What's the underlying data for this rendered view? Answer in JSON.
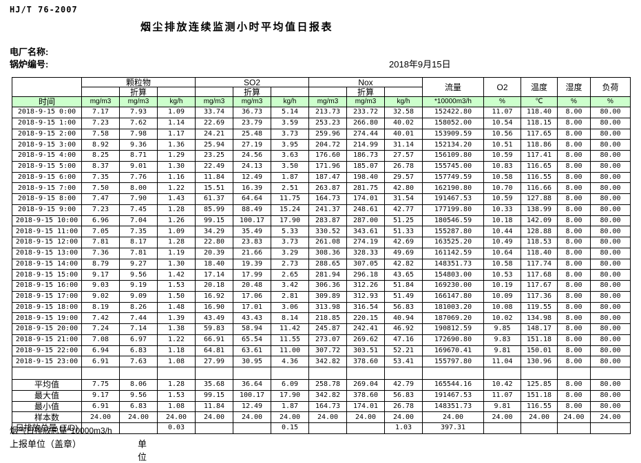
{
  "header": {
    "standard": "HJ/T  76-2007",
    "title": "烟尘排放连续监测小时平均值日报表",
    "plant_label": "电厂名称:",
    "boiler_label": "锅炉编号:",
    "date": "2018年9月15日"
  },
  "table": {
    "time_header": "时间",
    "conv_label": "折算",
    "groups": {
      "pm": "颗粒物",
      "so2": "SO2",
      "nox": "Nox",
      "flow": "流量",
      "o2": "O2",
      "temp": "温度",
      "humidity": "湿度",
      "load": "负荷"
    },
    "units": [
      "mg/m3",
      "mg/m3",
      "kg/h",
      "mg/m3",
      "mg/m3",
      "kg/h",
      "mg/m3",
      "mg/m3",
      "kg/h",
      "*10000m3/h",
      "%",
      "℃",
      "%",
      "%"
    ],
    "colors": {
      "header_green": "#ccffcc",
      "border": "#000000"
    },
    "rows": [
      [
        "2018-9-15 0:00",
        "7.17",
        "7.93",
        "1.09",
        "33.74",
        "36.73",
        "5.14",
        "213.73",
        "233.72",
        "32.58",
        "152422.80",
        "11.07",
        "118.40",
        "8.00",
        "80.00"
      ],
      [
        "2018-9-15 1:00",
        "7.23",
        "7.62",
        "1.14",
        "22.69",
        "23.79",
        "3.59",
        "253.23",
        "266.80",
        "40.02",
        "158052.00",
        "10.54",
        "118.15",
        "8.00",
        "80.00"
      ],
      [
        "2018-9-15 2:00",
        "7.58",
        "7.98",
        "1.17",
        "24.21",
        "25.48",
        "3.73",
        "259.96",
        "274.44",
        "40.01",
        "153909.59",
        "10.56",
        "117.65",
        "8.00",
        "80.00"
      ],
      [
        "2018-9-15 3:00",
        "8.92",
        "9.36",
        "1.36",
        "25.94",
        "27.19",
        "3.95",
        "204.72",
        "214.99",
        "31.14",
        "152134.20",
        "10.51",
        "118.86",
        "8.00",
        "80.00"
      ],
      [
        "2018-9-15 4:00",
        "8.25",
        "8.71",
        "1.29",
        "23.25",
        "24.56",
        "3.63",
        "176.60",
        "186.73",
        "27.57",
        "156109.80",
        "10.59",
        "117.41",
        "8.00",
        "80.00"
      ],
      [
        "2018-9-15 5:00",
        "8.37",
        "9.01",
        "1.30",
        "22.49",
        "24.13",
        "3.50",
        "171.96",
        "185.07",
        "26.78",
        "155745.00",
        "10.83",
        "116.65",
        "8.00",
        "80.00"
      ],
      [
        "2018-9-15 6:00",
        "7.35",
        "7.76",
        "1.16",
        "11.84",
        "12.49",
        "1.87",
        "187.47",
        "198.40",
        "29.57",
        "157749.59",
        "10.58",
        "116.55",
        "8.00",
        "80.00"
      ],
      [
        "2018-9-15 7:00",
        "7.50",
        "8.00",
        "1.22",
        "15.51",
        "16.39",
        "2.51",
        "263.87",
        "281.75",
        "42.80",
        "162190.80",
        "10.70",
        "116.66",
        "8.00",
        "80.00"
      ],
      [
        "2018-9-15 8:00",
        "7.47",
        "7.90",
        "1.43",
        "61.37",
        "64.64",
        "11.75",
        "164.73",
        "174.01",
        "31.54",
        "191467.53",
        "10.59",
        "127.88",
        "8.00",
        "80.00"
      ],
      [
        "2018-9-15 9:00",
        "7.23",
        "7.45",
        "1.28",
        "85.99",
        "88.49",
        "15.24",
        "241.37",
        "248.61",
        "42.77",
        "177199.80",
        "10.33",
        "138.99",
        "8.00",
        "80.00"
      ],
      [
        "2018-9-15 10:00",
        "6.96",
        "7.04",
        "1.26",
        "99.15",
        "100.17",
        "17.90",
        "283.87",
        "287.00",
        "51.25",
        "180546.59",
        "10.18",
        "142.09",
        "8.00",
        "80.00"
      ],
      [
        "2018-9-15 11:00",
        "7.05",
        "7.35",
        "1.09",
        "34.29",
        "35.49",
        "5.33",
        "330.52",
        "343.61",
        "51.33",
        "155287.80",
        "10.44",
        "128.88",
        "8.00",
        "80.00"
      ],
      [
        "2018-9-15 12:00",
        "7.81",
        "8.17",
        "1.28",
        "22.80",
        "23.83",
        "3.73",
        "261.08",
        "274.19",
        "42.69",
        "163525.20",
        "10.49",
        "118.53",
        "8.00",
        "80.00"
      ],
      [
        "2018-9-15 13:00",
        "7.36",
        "7.81",
        "1.19",
        "20.39",
        "21.66",
        "3.29",
        "308.36",
        "328.33",
        "49.69",
        "161142.59",
        "10.64",
        "118.40",
        "8.00",
        "80.00"
      ],
      [
        "2018-9-15 14:00",
        "8.79",
        "9.27",
        "1.30",
        "18.40",
        "19.39",
        "2.73",
        "288.65",
        "307.05",
        "42.82",
        "148351.73",
        "10.58",
        "117.74",
        "8.00",
        "80.00"
      ],
      [
        "2018-9-15 15:00",
        "9.17",
        "9.56",
        "1.42",
        "17.14",
        "17.99",
        "2.65",
        "281.94",
        "296.18",
        "43.65",
        "154803.00",
        "10.53",
        "117.68",
        "8.00",
        "80.00"
      ],
      [
        "2018-9-15 16:00",
        "9.03",
        "9.19",
        "1.53",
        "20.18",
        "20.48",
        "3.42",
        "306.36",
        "312.26",
        "51.84",
        "169230.00",
        "10.19",
        "117.67",
        "8.00",
        "80.00"
      ],
      [
        "2018-9-15 17:00",
        "9.02",
        "9.09",
        "1.50",
        "16.92",
        "17.06",
        "2.81",
        "309.89",
        "312.93",
        "51.49",
        "166147.80",
        "10.09",
        "117.36",
        "8.00",
        "80.00"
      ],
      [
        "2018-9-15 18:00",
        "8.19",
        "8.26",
        "1.48",
        "16.90",
        "17.01",
        "3.06",
        "313.98",
        "316.54",
        "56.83",
        "181003.20",
        "10.08",
        "119.55",
        "8.00",
        "80.00"
      ],
      [
        "2018-9-15 19:00",
        "7.42",
        "7.44",
        "1.39",
        "43.49",
        "43.43",
        "8.14",
        "218.85",
        "220.15",
        "40.94",
        "187069.20",
        "10.02",
        "134.98",
        "8.00",
        "80.00"
      ],
      [
        "2018-9-15 20:00",
        "7.24",
        "7.14",
        "1.38",
        "59.83",
        "58.94",
        "11.42",
        "245.87",
        "242.41",
        "46.92",
        "190812.59",
        "9.85",
        "148.17",
        "8.00",
        "80.00"
      ],
      [
        "2018-9-15 21:00",
        "7.08",
        "6.97",
        "1.22",
        "66.91",
        "65.54",
        "11.55",
        "273.07",
        "269.62",
        "47.16",
        "172690.80",
        "9.83",
        "151.18",
        "8.00",
        "80.00"
      ],
      [
        "2018-9-15 22:00",
        "6.94",
        "6.83",
        "1.18",
        "64.81",
        "63.61",
        "11.00",
        "307.72",
        "303.51",
        "52.21",
        "169670.41",
        "9.81",
        "150.01",
        "8.00",
        "80.00"
      ],
      [
        "2018-9-15 23:00",
        "6.91",
        "7.63",
        "1.08",
        "27.99",
        "30.95",
        "4.36",
        "342.82",
        "378.60",
        "53.41",
        "155797.80",
        "11.04",
        "130.96",
        "8.00",
        "80.00"
      ]
    ],
    "summary": [
      {
        "label": "平均值",
        "align": "right",
        "values": [
          "7.75",
          "8.06",
          "1.28",
          "35.68",
          "36.64",
          "6.09",
          "258.78",
          "269.04",
          "42.79",
          "165544.16",
          "10.42",
          "125.85",
          "8.00",
          "80.00"
        ]
      },
      {
        "label": "最大值",
        "align": "right",
        "values": [
          "9.17",
          "9.56",
          "1.53",
          "99.15",
          "100.17",
          "17.90",
          "342.82",
          "378.60",
          "56.83",
          "191467.53",
          "11.07",
          "151.18",
          "8.00",
          "80.00"
        ]
      },
      {
        "label": "最小值",
        "align": "right",
        "values": [
          "6.91",
          "6.83",
          "1.08",
          "11.84",
          "12.49",
          "1.87",
          "164.73",
          "174.01",
          "26.78",
          "148351.73",
          "9.81",
          "116.55",
          "8.00",
          "80.00"
        ]
      },
      {
        "label": "样本数",
        "align": "center",
        "values": [
          "24.00",
          "24.00",
          "24.00",
          "24.00",
          "24.00",
          "24.00",
          "24.00",
          "24.00",
          "24.00",
          "24.00",
          "24.00",
          "24.00",
          "24.00",
          "24.00"
        ]
      },
      {
        "label": "日排放总量 (T/D)",
        "label_align": "left",
        "align": "right",
        "values": [
          "",
          "",
          "0.03",
          "",
          "",
          "0.15",
          "",
          "",
          "1.03",
          "397.31",
          "",
          "",
          "",
          ""
        ]
      }
    ]
  },
  "footer": {
    "flue_total": "烟气日排放总量*10000m3/h",
    "report_unit": "上报单位（盖章）",
    "unit": "单位"
  }
}
